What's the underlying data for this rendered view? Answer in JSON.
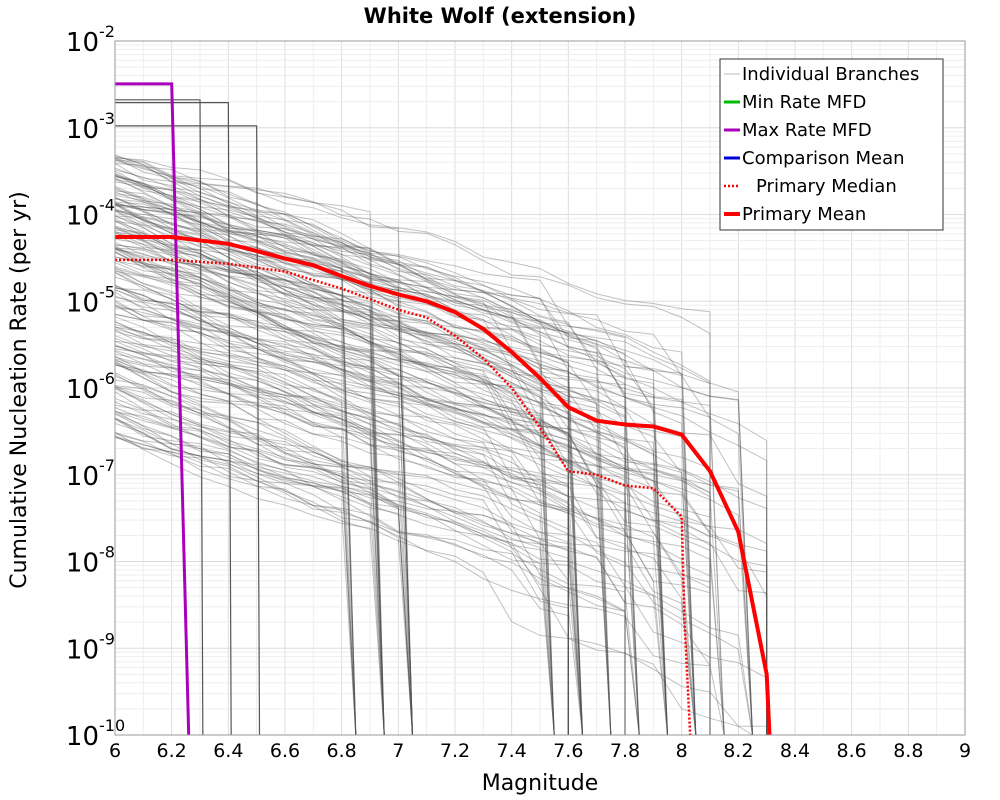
{
  "chart_data": {
    "type": "line",
    "title": "White Wolf (extension)",
    "xlabel": "Magnitude",
    "ylabel": "Cumulative Nucleation Rate (per yr)",
    "xlim": [
      6,
      9
    ],
    "ylim": [
      1e-10,
      0.01
    ],
    "yscale": "log",
    "grid": true,
    "legend_position": "top-right",
    "x_ticks": [
      "6",
      "6.2",
      "6.4",
      "6.6",
      "6.8",
      "7",
      "7.2",
      "7.4",
      "7.6",
      "7.8",
      "8",
      "8.2",
      "8.4",
      "8.6",
      "8.8",
      "9"
    ],
    "y_ticks": [
      {
        "base": "10",
        "exp": "-2",
        "value": 0.01
      },
      {
        "base": "10",
        "exp": "-3",
        "value": 0.001
      },
      {
        "base": "10",
        "exp": "-4",
        "value": 0.0001
      },
      {
        "base": "10",
        "exp": "-5",
        "value": 1e-05
      },
      {
        "base": "10",
        "exp": "-6",
        "value": 1e-06
      },
      {
        "base": "10",
        "exp": "-7",
        "value": 1e-07
      },
      {
        "base": "10",
        "exp": "-8",
        "value": 1e-08
      },
      {
        "base": "10",
        "exp": "-9",
        "value": 1e-09
      },
      {
        "base": "10",
        "exp": "-10",
        "value": 1e-10
      }
    ],
    "legend": [
      {
        "label": "Individual Branches",
        "color": "#bbbbbb",
        "style": "solid",
        "width": 1
      },
      {
        "label": "Min Rate MFD",
        "color": "#00bb00",
        "style": "solid",
        "width": 3
      },
      {
        "label": "Max Rate MFD",
        "color": "#aa00bb",
        "style": "solid",
        "width": 3
      },
      {
        "label": "Comparison Mean",
        "color": "#0000dd",
        "style": "solid",
        "width": 3
      },
      {
        "label": "Primary Median",
        "color": "#ff0000",
        "style": "dotted",
        "width": 2.5
      },
      {
        "label": "Primary Mean",
        "color": "#ff0000",
        "style": "solid",
        "width": 4
      }
    ],
    "series": [
      {
        "name": "Max Rate MFD",
        "color": "#aa00bb",
        "x": [
          6.0,
          6.2,
          6.2,
          6.26
        ],
        "y": [
          0.0032,
          0.0032,
          0.0032,
          1e-10
        ]
      },
      {
        "name": "Primary Mean",
        "color": "#ff0000",
        "x": [
          6.0,
          6.2,
          6.4,
          6.5,
          6.6,
          6.7,
          6.8,
          6.9,
          7.0,
          7.1,
          7.2,
          7.3,
          7.4,
          7.5,
          7.6,
          7.7,
          7.8,
          7.9,
          8.0,
          8.1,
          8.2,
          8.3,
          8.31
        ],
        "y": [
          5.5e-05,
          5.5e-05,
          4.6e-05,
          3.8e-05,
          3.1e-05,
          2.6e-05,
          1.95e-05,
          1.5e-05,
          1.2e-05,
          1e-05,
          7.5e-06,
          4.8e-06,
          2.6e-06,
          1.3e-06,
          6e-07,
          4.2e-07,
          3.8e-07,
          3.6e-07,
          2.9e-07,
          1.1e-07,
          2.2e-08,
          5e-10,
          1e-10
        ]
      },
      {
        "name": "Primary Median",
        "color": "#ff0000",
        "x": [
          6.0,
          6.2,
          6.4,
          6.6,
          6.8,
          7.0,
          7.1,
          7.2,
          7.3,
          7.4,
          7.5,
          7.6,
          7.7,
          7.8,
          7.9,
          8.0,
          8.01,
          8.03
        ],
        "y": [
          3e-05,
          3e-05,
          2.7e-05,
          2.2e-05,
          1.4e-05,
          8e-06,
          6.5e-06,
          4e-06,
          2.2e-06,
          1e-06,
          3.5e-07,
          1.1e-07,
          1e-07,
          7.5e-08,
          7e-08,
          3.3e-08,
          2e-09,
          1e-10
        ]
      }
    ]
  }
}
